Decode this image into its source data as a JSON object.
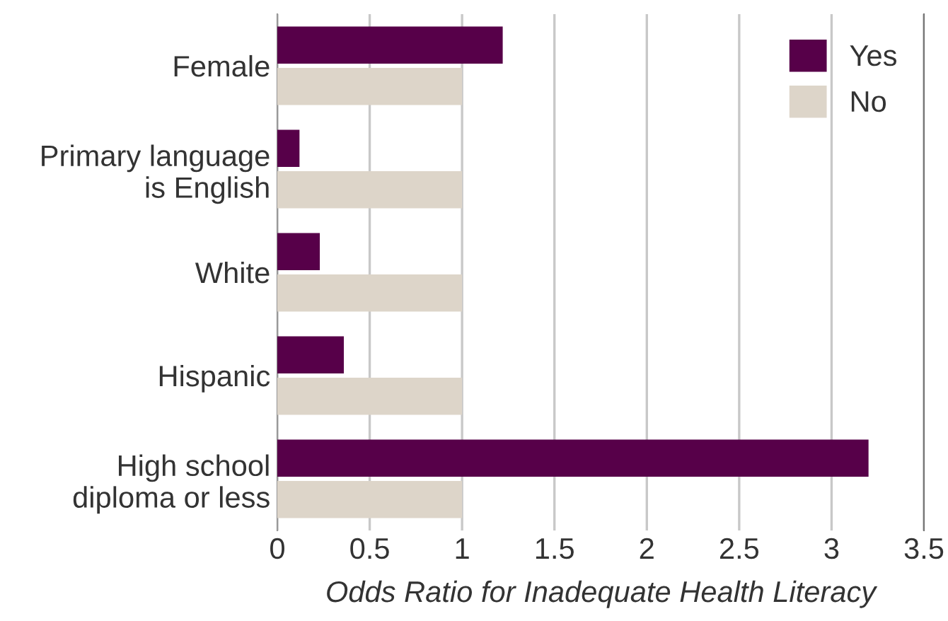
{
  "chart_data": {
    "type": "bar",
    "orientation": "horizontal",
    "categories": [
      "Female",
      "Primary language\nis English",
      "White",
      "Hispanic",
      "High school\ndiploma or less"
    ],
    "series": [
      {
        "name": "Yes",
        "color": "#570049",
        "values": [
          1.22,
          0.12,
          0.23,
          0.36,
          3.2
        ]
      },
      {
        "name": "No",
        "color": "#ddd5c9",
        "values": [
          1,
          1,
          1,
          1,
          1
        ]
      }
    ],
    "xlabel": "Odds Ratio for Inadequate Health Literacy",
    "xlim": [
      0,
      3.5
    ],
    "xticks": [
      0,
      0.5,
      1,
      1.5,
      2,
      2.5,
      3,
      3.5
    ],
    "grid": "x",
    "legend": "top right"
  }
}
